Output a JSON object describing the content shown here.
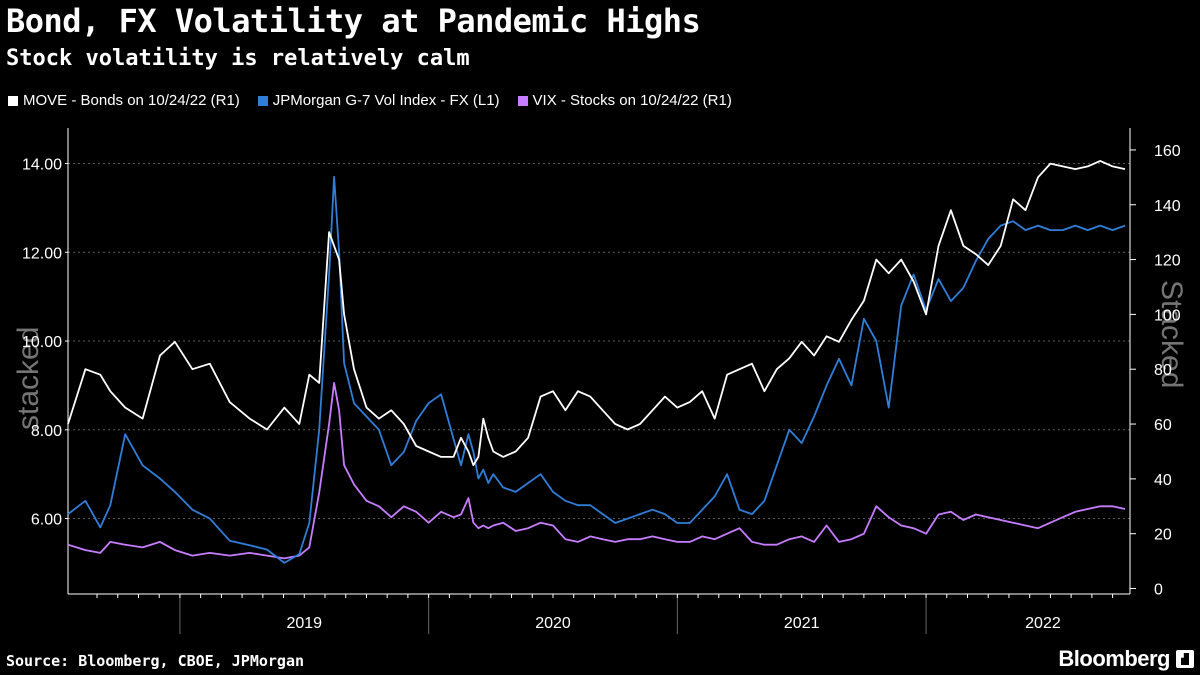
{
  "header": {
    "title": "Bond, FX Volatility at Pandemic Highs",
    "subtitle": "Stock volatility is relatively calm"
  },
  "legend": [
    {
      "label": "MOVE - Bonds on 10/24/22 (R1)",
      "color": "#ffffff"
    },
    {
      "label": "JPMorgan G-7 Vol Index - FX (L1)",
      "color": "#2f7ed8"
    },
    {
      "label": "VIX - Stocks on 10/24/22 (R1)",
      "color": "#c77dff"
    }
  ],
  "watermark": {
    "left": "stacked",
    "right": "Stacked"
  },
  "footer": {
    "source": "Source: Bloomberg, CBOE, JPMorgan",
    "brand": "Bloomberg"
  },
  "chart_data": {
    "type": "line",
    "x_unit": "year (decimal)",
    "xlim": [
      2018.55,
      2022.82
    ],
    "x_tick_labels": [
      "2019",
      "2020",
      "2021",
      "2022"
    ],
    "left_axis": {
      "ylim": [
        4.3,
        14.8
      ],
      "ticks": [
        6,
        8,
        10,
        12,
        14
      ],
      "tick_labels": [
        "6.00",
        "8.00",
        "10.00",
        "12.00",
        "14.00"
      ]
    },
    "right_axis": {
      "ylim": [
        -2,
        168
      ],
      "ticks": [
        0,
        20,
        40,
        60,
        80,
        100,
        120,
        140,
        160
      ],
      "tick_labels": [
        "0",
        "20",
        "40",
        "60",
        "80",
        "100",
        "120",
        "140",
        "160"
      ]
    },
    "series": [
      {
        "name": "MOVE - Bonds on 10/24/22 (R1)",
        "axis": "right",
        "color": "#ffffff",
        "x": [
          2018.55,
          2018.62,
          2018.68,
          2018.72,
          2018.78,
          2018.85,
          2018.92,
          2018.98,
          2019.05,
          2019.12,
          2019.2,
          2019.28,
          2019.35,
          2019.42,
          2019.48,
          2019.52,
          2019.56,
          2019.6,
          2019.62,
          2019.64,
          2019.66,
          2019.7,
          2019.75,
          2019.8,
          2019.85,
          2019.9,
          2019.95,
          2020.0,
          2020.05,
          2020.1,
          2020.13,
          2020.16,
          2020.18,
          2020.2,
          2020.22,
          2020.24,
          2020.26,
          2020.3,
          2020.35,
          2020.4,
          2020.45,
          2020.5,
          2020.55,
          2020.6,
          2020.65,
          2020.7,
          2020.75,
          2020.8,
          2020.85,
          2020.9,
          2020.95,
          2021.0,
          2021.05,
          2021.1,
          2021.15,
          2021.2,
          2021.25,
          2021.3,
          2021.35,
          2021.4,
          2021.45,
          2021.5,
          2021.55,
          2021.6,
          2021.65,
          2021.7,
          2021.75,
          2021.8,
          2021.85,
          2021.9,
          2021.95,
          2022.0,
          2022.05,
          2022.1,
          2022.15,
          2022.2,
          2022.25,
          2022.3,
          2022.35,
          2022.4,
          2022.45,
          2022.5,
          2022.55,
          2022.6,
          2022.65,
          2022.7,
          2022.75,
          2022.8
        ],
        "y": [
          60,
          80,
          78,
          72,
          66,
          62,
          85,
          90,
          80,
          82,
          68,
          62,
          58,
          66,
          60,
          78,
          75,
          130,
          125,
          120,
          100,
          80,
          66,
          62,
          65,
          60,
          52,
          50,
          48,
          48,
          55,
          50,
          45,
          48,
          62,
          55,
          50,
          48,
          50,
          55,
          70,
          72,
          65,
          72,
          70,
          65,
          60,
          58,
          60,
          65,
          70,
          66,
          68,
          72,
          62,
          78,
          80,
          82,
          72,
          80,
          84,
          90,
          85,
          92,
          90,
          98,
          105,
          120,
          115,
          120,
          112,
          100,
          125,
          138,
          125,
          122,
          118,
          125,
          142,
          138,
          150,
          155,
          154,
          153,
          154,
          156,
          154,
          153
        ]
      },
      {
        "name": "JPMorgan G-7 Vol Index - FX (L1)",
        "axis": "left",
        "color": "#2f7ed8",
        "x": [
          2018.55,
          2018.62,
          2018.68,
          2018.72,
          2018.78,
          2018.85,
          2018.92,
          2018.98,
          2019.05,
          2019.12,
          2019.2,
          2019.28,
          2019.35,
          2019.42,
          2019.48,
          2019.52,
          2019.56,
          2019.6,
          2019.62,
          2019.64,
          2019.66,
          2019.7,
          2019.75,
          2019.8,
          2019.85,
          2019.9,
          2019.95,
          2020.0,
          2020.05,
          2020.1,
          2020.13,
          2020.16,
          2020.18,
          2020.2,
          2020.22,
          2020.24,
          2020.26,
          2020.3,
          2020.35,
          2020.4,
          2020.45,
          2020.5,
          2020.55,
          2020.6,
          2020.65,
          2020.7,
          2020.75,
          2020.8,
          2020.85,
          2020.9,
          2020.95,
          2021.0,
          2021.05,
          2021.1,
          2021.15,
          2021.2,
          2021.25,
          2021.3,
          2021.35,
          2021.4,
          2021.45,
          2021.5,
          2021.55,
          2021.6,
          2021.65,
          2021.7,
          2021.75,
          2021.8,
          2021.85,
          2021.9,
          2021.95,
          2022.0,
          2022.05,
          2022.1,
          2022.15,
          2022.2,
          2022.25,
          2022.3,
          2022.35,
          2022.4,
          2022.45,
          2022.5,
          2022.55,
          2022.6,
          2022.65,
          2022.7,
          2022.75,
          2022.8
        ],
        "y": [
          6.1,
          6.4,
          5.8,
          6.3,
          7.9,
          7.2,
          6.9,
          6.6,
          6.2,
          6.0,
          5.5,
          5.4,
          5.3,
          5.0,
          5.2,
          5.9,
          8.0,
          11.5,
          13.7,
          12.0,
          9.5,
          8.6,
          8.3,
          8.0,
          7.2,
          7.5,
          8.2,
          8.6,
          8.8,
          7.8,
          7.2,
          7.9,
          7.5,
          6.9,
          7.1,
          6.8,
          7.0,
          6.7,
          6.6,
          6.8,
          7.0,
          6.6,
          6.4,
          6.3,
          6.3,
          6.1,
          5.9,
          6.0,
          6.1,
          6.2,
          6.1,
          5.9,
          5.9,
          6.2,
          6.5,
          7.0,
          6.2,
          6.1,
          6.4,
          7.2,
          8.0,
          7.7,
          8.3,
          9.0,
          9.6,
          9.0,
          10.5,
          10.0,
          8.5,
          10.8,
          11.5,
          10.7,
          11.4,
          10.9,
          11.2,
          11.8,
          12.3,
          12.6,
          12.7,
          12.5,
          12.6,
          12.5,
          12.5,
          12.6,
          12.5,
          12.6,
          12.5,
          12.6
        ]
      },
      {
        "name": "VIX - Stocks on 10/24/22 (R1)",
        "axis": "right",
        "color": "#c77dff",
        "x": [
          2018.55,
          2018.62,
          2018.68,
          2018.72,
          2018.78,
          2018.85,
          2018.92,
          2018.98,
          2019.05,
          2019.12,
          2019.2,
          2019.28,
          2019.35,
          2019.42,
          2019.48,
          2019.52,
          2019.56,
          2019.6,
          2019.62,
          2019.64,
          2019.66,
          2019.7,
          2019.75,
          2019.8,
          2019.85,
          2019.9,
          2019.95,
          2020.0,
          2020.05,
          2020.1,
          2020.13,
          2020.16,
          2020.18,
          2020.2,
          2020.22,
          2020.24,
          2020.26,
          2020.3,
          2020.35,
          2020.4,
          2020.45,
          2020.5,
          2020.55,
          2020.6,
          2020.65,
          2020.7,
          2020.75,
          2020.8,
          2020.85,
          2020.9,
          2020.95,
          2021.0,
          2021.05,
          2021.1,
          2021.15,
          2021.2,
          2021.25,
          2021.3,
          2021.35,
          2021.4,
          2021.45,
          2021.5,
          2021.55,
          2021.6,
          2021.65,
          2021.7,
          2021.75,
          2021.8,
          2021.85,
          2021.9,
          2021.95,
          2022.0,
          2022.05,
          2022.1,
          2022.15,
          2022.2,
          2022.25,
          2022.3,
          2022.35,
          2022.4,
          2022.45,
          2022.5,
          2022.55,
          2022.6,
          2022.65,
          2022.7,
          2022.75,
          2022.8
        ],
        "y": [
          16,
          14,
          13,
          17,
          16,
          15,
          17,
          14,
          12,
          13,
          12,
          13,
          12,
          11,
          12,
          15,
          35,
          60,
          75,
          65,
          45,
          38,
          32,
          30,
          26,
          30,
          28,
          24,
          28,
          26,
          27,
          33,
          24,
          22,
          23,
          22,
          23,
          24,
          21,
          22,
          24,
          23,
          18,
          17,
          19,
          18,
          17,
          18,
          18,
          19,
          18,
          17,
          17,
          19,
          18,
          20,
          22,
          17,
          16,
          16,
          18,
          19,
          17,
          23,
          17,
          18,
          20,
          30,
          26,
          23,
          22,
          20,
          27,
          28,
          25,
          27,
          26,
          25,
          24,
          23,
          22,
          24,
          26,
          28,
          29,
          30,
          30,
          29
        ]
      }
    ]
  }
}
